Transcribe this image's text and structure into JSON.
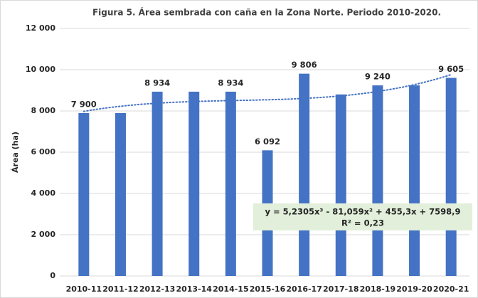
{
  "chart_data": {
    "type": "bar",
    "title": "Figura 5. Área sembrada con caña en la Zona Norte. Periodo 2010-2020.",
    "y_label": "Área (ha)",
    "categories": [
      "2010-11",
      "2011-12",
      "2012-13",
      "2013-14",
      "2014-15",
      "2015-16",
      "2016-17",
      "2017-18",
      "2018-19",
      "2019-20",
      "2020-21"
    ],
    "values": [
      7900,
      7900,
      8934,
      8934,
      8934,
      6092,
      9806,
      8800,
      9240,
      9240,
      9605
    ],
    "value_labels": [
      "7 900",
      null,
      "8 934",
      null,
      "8 934",
      "6 092",
      "9 806",
      null,
      "9 240",
      null,
      "9 605"
    ],
    "color": "#4472c4",
    "ylim": [
      0,
      12000
    ],
    "yticks": [
      0,
      {
        "value": 2000,
        "label": "2 000"
      },
      {
        "value": 4000,
        "label": "4 000"
      },
      {
        "value": 6000,
        "label": "6 000"
      },
      {
        "value": 8000,
        "label": "8 000"
      },
      {
        "value": 10000,
        "label": "10 000"
      },
      {
        "value": 12000,
        "label": "12 000"
      }
    ],
    "grid": true,
    "trendline": {
      "coefficients": [
        5.2305,
        -81.059,
        455.3,
        7598.9
      ],
      "equation": "y = 5,2305x³ - 81,059x² + 455,3x + 7598,9",
      "r2": "R² = 0,23"
    }
  }
}
